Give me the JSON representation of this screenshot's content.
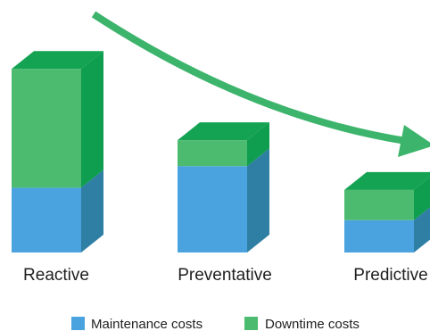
{
  "chart_data": {
    "type": "bar",
    "stacked": true,
    "style": "3d",
    "categories": [
      "Reactive",
      "Preventative",
      "Predictive"
    ],
    "series": [
      {
        "name": "Maintenance costs",
        "values": [
          3,
          4,
          1.5
        ],
        "color": "#4aa3df",
        "side_color": "#2f7fa5"
      },
      {
        "name": "Downtime costs",
        "values": [
          5.5,
          1.2,
          1.4
        ],
        "color": "#4dbb6f",
        "side_color": "#0f9d4f",
        "top_color": "#14a352"
      }
    ],
    "ylim": [
      0,
      9
    ],
    "legend_position": "bottom",
    "annotation": "downward-trend-arrow",
    "arrow_color": "#3cb46b"
  }
}
